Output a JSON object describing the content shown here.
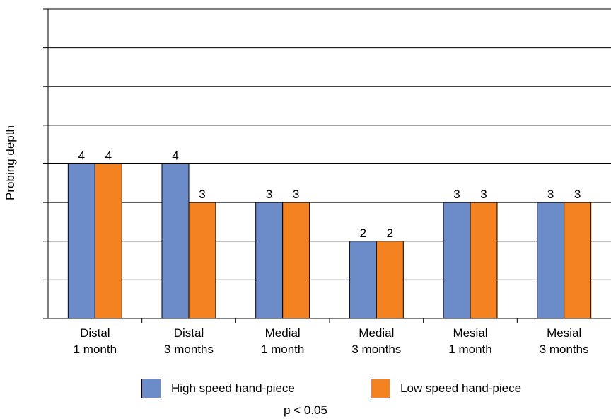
{
  "chart_data": {
    "type": "bar",
    "categories": [
      [
        "Distal",
        "1 month"
      ],
      [
        "Distal",
        "3 months"
      ],
      [
        "Medial",
        "1 month"
      ],
      [
        "Medial",
        "3 months"
      ],
      [
        "Mesial",
        "1 month"
      ],
      [
        "Mesial",
        "3 months"
      ]
    ],
    "series": [
      {
        "name": "High speed hand-piece",
        "values": [
          4,
          4,
          3,
          2,
          3,
          3
        ],
        "color": "#6b8cc9"
      },
      {
        "name": "Low speed hand-piece",
        "values": [
          4,
          3,
          3,
          2,
          3,
          3
        ],
        "color": "#f58220"
      }
    ],
    "ylabel": "Probing depth",
    "ylim": [
      0,
      8
    ],
    "grid": true,
    "legend_position": "bottom",
    "note": "p < 0.05"
  }
}
